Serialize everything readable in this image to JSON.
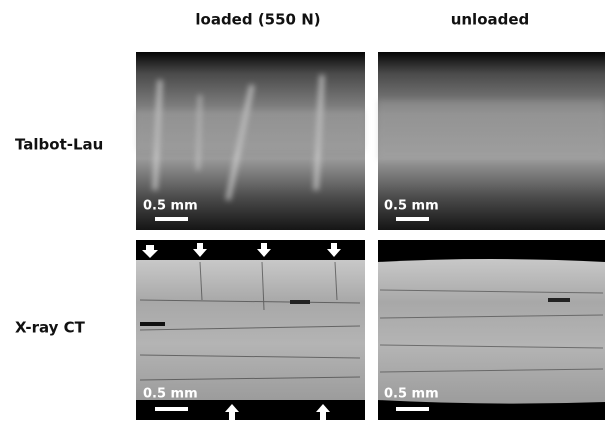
{
  "columns": [
    "loaded (550 N)",
    "unloaded"
  ],
  "rows": [
    {
      "label": "Talbot-Lau",
      "scale_bars": [
        "0.5 mm",
        "0.5 mm"
      ]
    },
    {
      "label": "X-ray CT",
      "scale_bars": [
        "0.5 mm",
        "0.5 mm"
      ]
    }
  ]
}
